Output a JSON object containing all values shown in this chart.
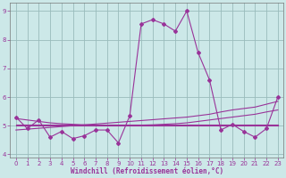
{
  "x": [
    0,
    1,
    2,
    3,
    4,
    5,
    6,
    7,
    8,
    9,
    10,
    11,
    12,
    13,
    14,
    15,
    16,
    17,
    18,
    19,
    20,
    21,
    22,
    23
  ],
  "main_line": [
    5.3,
    4.9,
    5.2,
    4.6,
    4.8,
    4.55,
    4.65,
    4.85,
    4.85,
    4.4,
    5.35,
    8.55,
    8.7,
    8.55,
    8.3,
    9.0,
    7.55,
    6.6,
    4.85,
    5.05,
    4.8,
    4.6,
    4.9,
    6.0
  ],
  "trend_flat1": [
    5.05,
    5.05,
    5.05,
    5.05,
    5.05,
    5.05,
    5.05,
    5.05,
    5.05,
    5.05,
    5.05,
    5.05,
    5.05,
    5.05,
    5.05,
    5.05,
    5.05,
    5.05,
    5.05,
    5.05,
    5.05,
    5.05,
    5.05,
    5.05
  ],
  "trend_flat2": [
    5.0,
    5.0,
    5.0,
    5.0,
    5.0,
    5.0,
    5.0,
    5.0,
    5.0,
    5.0,
    5.0,
    5.0,
    5.0,
    5.0,
    5.0,
    5.0,
    5.0,
    5.0,
    5.0,
    5.0,
    5.0,
    5.0,
    5.0,
    5.0
  ],
  "trend_rising": [
    4.85,
    4.88,
    4.91,
    4.94,
    4.97,
    5.0,
    5.03,
    5.06,
    5.09,
    5.12,
    5.15,
    5.18,
    5.21,
    5.24,
    5.27,
    5.3,
    5.35,
    5.4,
    5.48,
    5.55,
    5.6,
    5.65,
    5.75,
    5.85
  ],
  "trend_concave": [
    5.25,
    5.2,
    5.15,
    5.1,
    5.07,
    5.05,
    5.03,
    5.02,
    5.01,
    5.01,
    5.01,
    5.02,
    5.03,
    5.05,
    5.07,
    5.1,
    5.15,
    5.2,
    5.25,
    5.3,
    5.35,
    5.4,
    5.48,
    5.55
  ],
  "line_color": "#993399",
  "bg_color": "#cce8e8",
  "grid_color": "#99bbbb",
  "xlabel": "Windchill (Refroidissement éolien,°C)",
  "ylim": [
    3.9,
    9.3
  ],
  "xlim": [
    -0.5,
    23.5
  ],
  "yticks": [
    4,
    5,
    6,
    7,
    8,
    9
  ],
  "xticks": [
    0,
    1,
    2,
    3,
    4,
    5,
    6,
    7,
    8,
    9,
    10,
    11,
    12,
    13,
    14,
    15,
    16,
    17,
    18,
    19,
    20,
    21,
    22,
    23
  ]
}
